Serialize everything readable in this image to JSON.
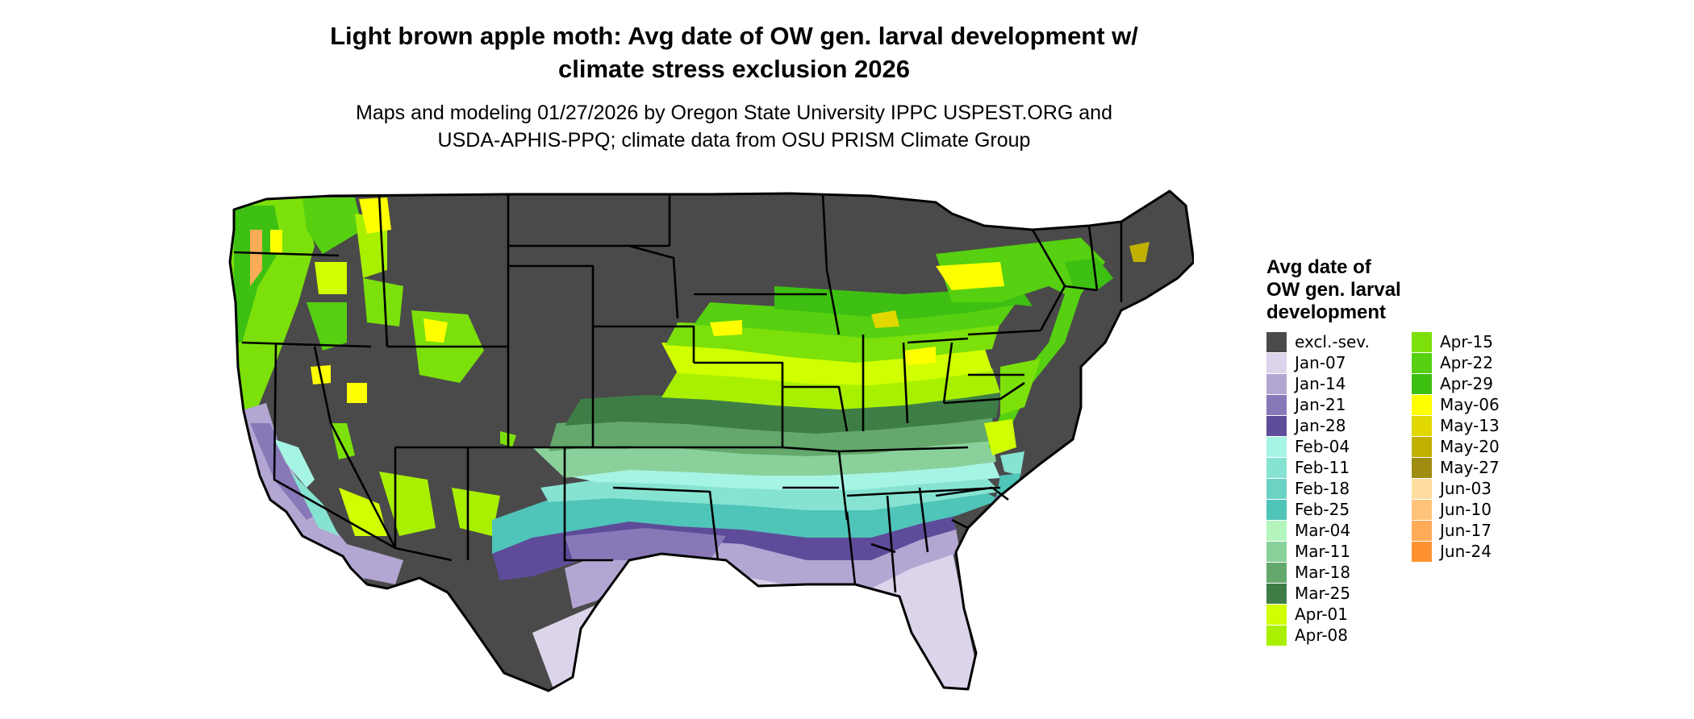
{
  "title_line1": "Light brown apple moth: Avg date of OW gen. larval development w/",
  "title_line2": "climate stress exclusion 2026",
  "subtitle_line1": "Maps and modeling 01/27/2026 by Oregon State University IPPC USPEST.ORG and",
  "subtitle_line2": "USDA-APHIS-PPQ; climate data from OSU PRISM Climate Group",
  "legend": {
    "title_lines": [
      "Avg date of",
      "OW gen. larval",
      "development"
    ],
    "items": [
      {
        "label": "excl.-sev.",
        "color": "#4a4a4a"
      },
      {
        "label": "Jan-07",
        "color": "#dcd4ea"
      },
      {
        "label": "Jan-14",
        "color": "#b3a6d2"
      },
      {
        "label": "Jan-21",
        "color": "#8878b8"
      },
      {
        "label": "Jan-28",
        "color": "#5e4c9a"
      },
      {
        "label": "Feb-04",
        "color": "#a6f4e4"
      },
      {
        "label": "Feb-11",
        "color": "#86e3d2"
      },
      {
        "label": "Feb-18",
        "color": "#6bd2c4"
      },
      {
        "label": "Feb-25",
        "color": "#4fc4b8"
      },
      {
        "label": "Mar-04",
        "color": "#b4f5be"
      },
      {
        "label": "Mar-11",
        "color": "#8ad09a"
      },
      {
        "label": "Mar-18",
        "color": "#64a86c"
      },
      {
        "label": "Mar-25",
        "color": "#3e7e46"
      },
      {
        "label": "Apr-01",
        "color": "#d0ff00"
      },
      {
        "label": "Apr-08",
        "color": "#a8f000"
      },
      {
        "label": "Apr-15",
        "color": "#7ce00a"
      },
      {
        "label": "Apr-22",
        "color": "#56d010"
      },
      {
        "label": "Apr-29",
        "color": "#3ec012"
      },
      {
        "label": "May-06",
        "color": "#ffff00"
      },
      {
        "label": "May-13",
        "color": "#e0d800"
      },
      {
        "label": "May-20",
        "color": "#c0b000"
      },
      {
        "label": "May-27",
        "color": "#a08c10"
      },
      {
        "label": "Jun-03",
        "color": "#ffdca0"
      },
      {
        "label": "Jun-10",
        "color": "#ffc47a"
      },
      {
        "label": "Jun-17",
        "color": "#ffab58"
      },
      {
        "label": "Jun-24",
        "color": "#ff9230"
      }
    ]
  }
}
